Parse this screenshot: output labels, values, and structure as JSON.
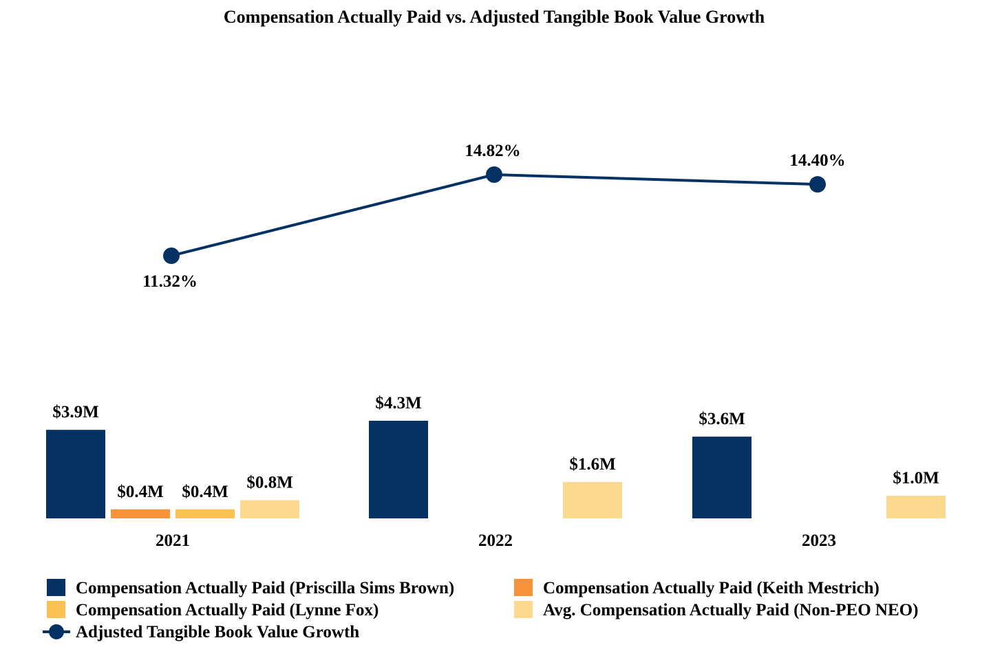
{
  "chart_data": {
    "type": "bar",
    "title": "Compensation Actually Paid vs. Adjusted Tangible Book Value Growth",
    "categories": [
      "2021",
      "2022",
      "2023"
    ],
    "xlabel": "",
    "ylabel": "",
    "grid": false,
    "legend_position": "bottom",
    "series": [
      {
        "name": "Compensation Actually Paid (Priscilla Sims Brown)",
        "kind": "bar",
        "color": "#063263",
        "values": [
          3.9,
          4.3,
          3.6
        ],
        "labels": [
          "$3.9M",
          "$4.3M",
          "$3.6M"
        ]
      },
      {
        "name": "Compensation Actually Paid (Keith Mestrich)",
        "kind": "bar",
        "color": "#F99239",
        "values": [
          0.4,
          null,
          null
        ],
        "labels": [
          "$0.4M",
          null,
          null
        ]
      },
      {
        "name": "Compensation Actually Paid (Lynne Fox)",
        "kind": "bar",
        "color": "#FAC250",
        "values": [
          0.4,
          null,
          null
        ],
        "labels": [
          "$0.4M",
          null,
          null
        ]
      },
      {
        "name": "Avg. Compensation Actually Paid (Non-PEO NEO)",
        "kind": "bar",
        "color": "#FDD98F",
        "values": [
          0.8,
          1.6,
          1.0
        ],
        "labels": [
          "$0.8M",
          "$1.6M",
          "$1.0M"
        ]
      },
      {
        "name": "Adjusted Tangible Book Value Growth",
        "kind": "line",
        "color": "#063263",
        "values": [
          11.32,
          14.82,
          14.4
        ],
        "labels": [
          "11.32%",
          "14.82%",
          "14.40%"
        ]
      }
    ],
    "bar_ylim": [
      0,
      4.3
    ],
    "line_ylim": [
      10.0,
      15.5
    ]
  }
}
